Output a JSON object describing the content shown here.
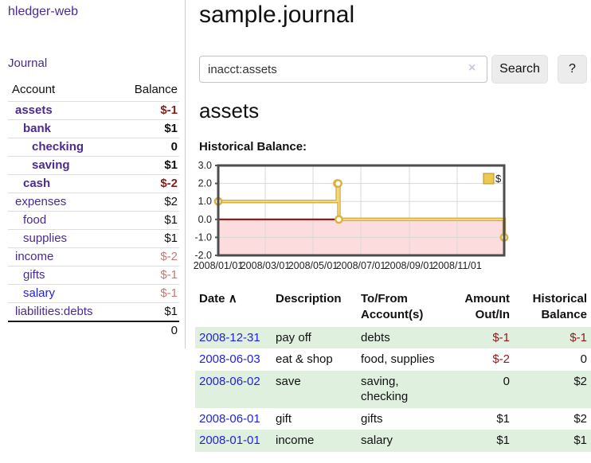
{
  "colors": {
    "link_purple": "#4b2a91",
    "link_blue": "#2222dd",
    "negative_strong": "#8c1a1a",
    "negative_muted": "#c77878",
    "row_stripe_green": "#dff0df",
    "chart_line_gold": "#d9b23e",
    "chart_line_highlight": "#f3dd95",
    "chart_marker_fill": "#fffdf4",
    "chart_negative_bg": "#fcdcdc",
    "chart_zero_line": "#8b0000",
    "chart_border": "#4d4d4d",
    "chart_grid": "#d8d8d8",
    "legend_swatch": "#ecc94f"
  },
  "app": {
    "title": "hledger-web"
  },
  "sidebar": {
    "journal_link": "Journal",
    "table": {
      "headers": {
        "account": "Account",
        "balance": "Balance"
      },
      "rows": [
        {
          "name": "assets",
          "balance": "$-1"
        },
        {
          "name": "bank",
          "balance": "$1"
        },
        {
          "name": "checking",
          "balance": "0"
        },
        {
          "name": "saving",
          "balance": "$1"
        },
        {
          "name": "cash",
          "balance": "$-2"
        },
        {
          "name": "expenses",
          "balance": "$2"
        },
        {
          "name": "food",
          "balance": "$1"
        },
        {
          "name": "supplies",
          "balance": "$1"
        },
        {
          "name": "income",
          "balance": "$-2"
        },
        {
          "name": "gifts",
          "balance": "$-1"
        },
        {
          "name": "salary",
          "balance": "$-1"
        },
        {
          "name": "liabilities:debts",
          "balance": "$1"
        }
      ],
      "total": "0"
    }
  },
  "main": {
    "title": "sample.journal",
    "search": {
      "value": "inacct:assets",
      "clear_icon": "×",
      "button_label": "Search",
      "help_label": "?"
    },
    "account_heading": "assets",
    "chart_heading": "Historical Balance:"
  },
  "chart_data": {
    "type": "line",
    "title": "Historical Balance:",
    "style": "step-after",
    "series": [
      {
        "name": "$",
        "points": [
          [
            "2008-01-01",
            1
          ],
          [
            "2008-06-01",
            2
          ],
          [
            "2008-06-02",
            2
          ],
          [
            "2008-06-03",
            0
          ],
          [
            "2008-12-31",
            -1
          ]
        ]
      }
    ],
    "xlim": [
      "2008-01-01",
      "2008-12-31"
    ],
    "ylim": [
      -2,
      3
    ],
    "yticks": [
      3,
      2,
      1,
      0,
      -1,
      -2
    ],
    "ytick_labels": [
      "3.0",
      "2.0",
      "1.0",
      "0.0",
      "-1.0",
      "-2.0"
    ],
    "xticks": [
      "2008-01-01",
      "2008-03-01",
      "2008-05-01",
      "2008-07-01",
      "2008-09-01",
      "2008-11-01"
    ],
    "xtick_labels": [
      "2008/01/01",
      "2008/03/01",
      "2008/05/01",
      "2008/07/01",
      "2008/09/01",
      "2008/11/01"
    ],
    "legend": {
      "label": "$",
      "position": "top-right"
    },
    "grid": true,
    "negative_region_shaded": true
  },
  "register": {
    "headers": {
      "date": "Date",
      "sort_caret": "∧",
      "description": "Description",
      "accounts": "To/From Account(s)",
      "amount": "Amount Out/In",
      "balance": "Historical Balance"
    },
    "rows": [
      {
        "date": "2008-12-31",
        "description": "pay off",
        "accounts": "debts",
        "amount": "$-1",
        "balance": "$-1"
      },
      {
        "date": "2008-06-03",
        "description": "eat & shop",
        "accounts": "food, supplies",
        "amount": "$-2",
        "balance": "0"
      },
      {
        "date": "2008-06-02",
        "description": "save",
        "accounts": "saving, checking",
        "amount": "0",
        "balance": "$2"
      },
      {
        "date": "2008-06-01",
        "description": "gift",
        "accounts": "gifts",
        "amount": "$1",
        "balance": "$2"
      },
      {
        "date": "2008-01-01",
        "description": "income",
        "accounts": "salary",
        "amount": "$1",
        "balance": "$1"
      }
    ]
  }
}
